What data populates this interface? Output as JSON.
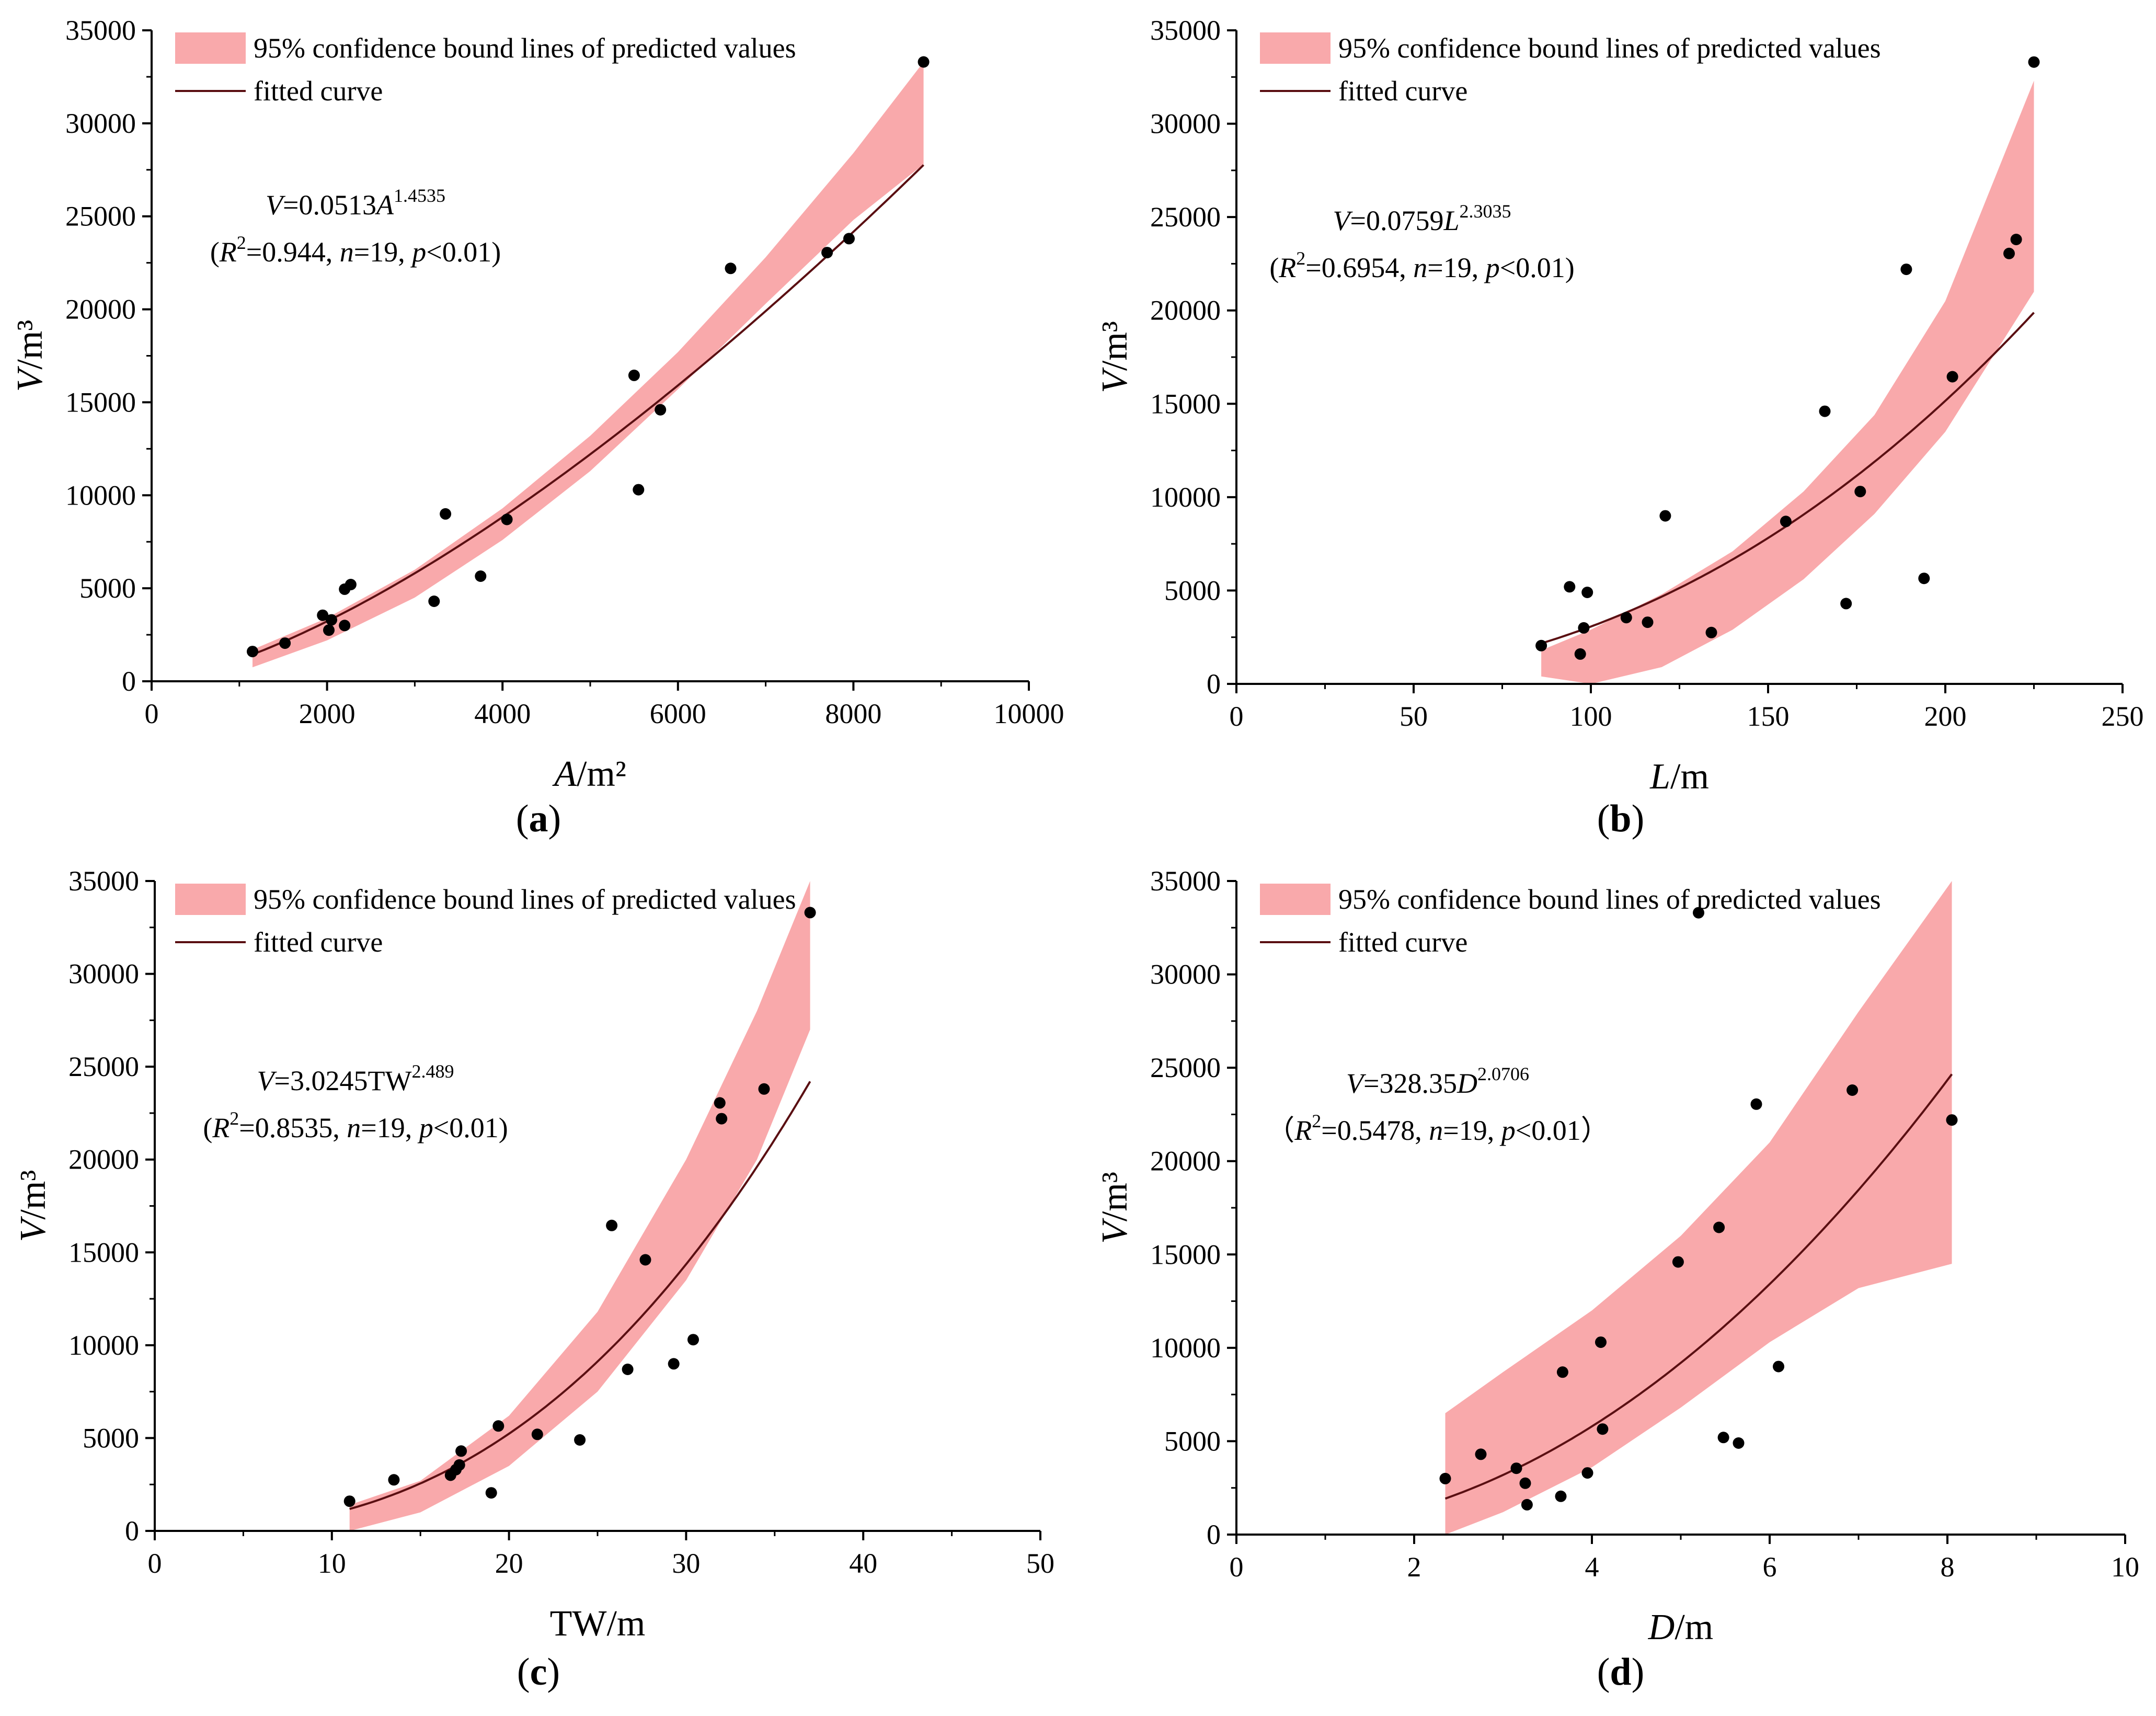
{
  "colors": {
    "band": "#f9a9ab",
    "curve": "#5a0f12",
    "point": "#000000",
    "axis": "#000000"
  },
  "chart_data": [
    {
      "type": "scatter",
      "caption": "(a)",
      "xlabel": {
        "var": "A",
        "unit": "/m²"
      },
      "ylabel": {
        "var": "V",
        "unit": "/m³"
      },
      "xlim": [
        0,
        10000
      ],
      "ylim": [
        0,
        35000
      ],
      "xticks": [
        "0",
        "2000",
        "4000",
        "6000",
        "8000",
        "10000"
      ],
      "yticks": [
        "0",
        "5000",
        "10000",
        "15000",
        "20000",
        "25000",
        "30000",
        "35000"
      ],
      "legend": {
        "band": "95% confidence bound lines of predicted values",
        "curve": "fitted curve"
      },
      "equation": {
        "lhs": "V",
        "coef": "=0.0513",
        "var": "A",
        "exp": "1.4535"
      },
      "stats": {
        "open": "(",
        "r": "R",
        "rexp": "2",
        "rval": "=0.944, ",
        "n": "n",
        "nval": "=19, ",
        "p": "p",
        "pval": "<0.01)"
      },
      "fit": {
        "a": 0.0513,
        "b": 1.4535,
        "xmin": 1150,
        "xmax": 8800
      },
      "band": {
        "lower": [
          [
            1150,
            750
          ],
          [
            2000,
            2200
          ],
          [
            3000,
            4500
          ],
          [
            4000,
            7600
          ],
          [
            5000,
            11300
          ],
          [
            6000,
            15700
          ],
          [
            7000,
            20300
          ],
          [
            8000,
            24800
          ],
          [
            8800,
            27800
          ]
        ],
        "upper": [
          [
            1150,
            1700
          ],
          [
            2000,
            3400
          ],
          [
            3000,
            6000
          ],
          [
            4000,
            9300
          ],
          [
            5000,
            13200
          ],
          [
            6000,
            17700
          ],
          [
            7000,
            22800
          ],
          [
            8000,
            28400
          ],
          [
            8800,
            33300
          ]
        ]
      },
      "points": [
        [
          1150,
          1600
        ],
        [
          1520,
          2050
        ],
        [
          1950,
          3550
        ],
        [
          2020,
          2750
        ],
        [
          2050,
          3300
        ],
        [
          2200,
          3000
        ],
        [
          2200,
          4950
        ],
        [
          2270,
          5200
        ],
        [
          3220,
          4300
        ],
        [
          3350,
          9000
        ],
        [
          3750,
          5650
        ],
        [
          4050,
          8700
        ],
        [
          5500,
          16450
        ],
        [
          5550,
          10300
        ],
        [
          5800,
          14600
        ],
        [
          6600,
          22200
        ],
        [
          7700,
          23050
        ],
        [
          7950,
          23800
        ],
        [
          8800,
          33300
        ]
      ]
    },
    {
      "type": "scatter",
      "caption": "(b)",
      "xlabel": {
        "var": "L",
        "unit": "/m"
      },
      "ylabel": {
        "var": "V",
        "unit": "/m³"
      },
      "xlim": [
        0,
        250
      ],
      "ylim": [
        0,
        35000
      ],
      "xticks": [
        "0",
        "50",
        "100",
        "150",
        "200",
        "250"
      ],
      "yticks": [
        "0",
        "5000",
        "10000",
        "15000",
        "20000",
        "25000",
        "30000",
        "35000"
      ],
      "legend": {
        "band": "95% confidence bound lines of predicted values",
        "curve": "fitted curve"
      },
      "equation": {
        "lhs": "V",
        "coef": "=0.0759",
        "var": "L",
        "exp": "2.3035"
      },
      "stats": {
        "open": "(",
        "r": "R",
        "rexp": "2",
        "rval": "=0.6954, ",
        "n": "n",
        "nval": "=19, ",
        "p": "p",
        "pval": "<0.01)"
      },
      "fit": {
        "a": 0.0759,
        "b": 2.3035,
        "xmin": 86,
        "xmax": 225
      },
      "band": {
        "lower": [
          [
            86,
            400
          ],
          [
            100,
            0
          ],
          [
            120,
            900
          ],
          [
            140,
            2900
          ],
          [
            160,
            5600
          ],
          [
            180,
            9100
          ],
          [
            200,
            13500
          ],
          [
            225,
            21000
          ]
        ],
        "upper": [
          [
            86,
            1800
          ],
          [
            100,
            2900
          ],
          [
            120,
            4800
          ],
          [
            140,
            7100
          ],
          [
            160,
            10300
          ],
          [
            180,
            14400
          ],
          [
            200,
            20500
          ],
          [
            225,
            32300
          ]
        ]
      },
      "points": [
        [
          86,
          2050
        ],
        [
          94,
          5200
        ],
        [
          97,
          1600
        ],
        [
          98,
          3000
        ],
        [
          99,
          4900
        ],
        [
          110,
          3550
        ],
        [
          116,
          3300
        ],
        [
          121,
          9000
        ],
        [
          134,
          2750
        ],
        [
          155,
          8700
        ],
        [
          166,
          14600
        ],
        [
          172,
          4300
        ],
        [
          176,
          10300
        ],
        [
          189,
          22200
        ],
        [
          194,
          5650
        ],
        [
          202,
          16450
        ],
        [
          218,
          23050
        ],
        [
          220,
          23800
        ],
        [
          225,
          33300
        ]
      ]
    },
    {
      "type": "scatter",
      "caption": "(c)",
      "xlabel": {
        "var": "",
        "prefix": "TW",
        "unit": "/m"
      },
      "ylabel": {
        "var": "V",
        "unit": "/m³"
      },
      "xlim": [
        0,
        50
      ],
      "ylim": [
        0,
        35000
      ],
      "xticks": [
        "0",
        "10",
        "20",
        "30",
        "40",
        "50"
      ],
      "yticks": [
        "0",
        "5000",
        "10000",
        "15000",
        "20000",
        "25000",
        "30000",
        "35000"
      ],
      "legend": {
        "band": "95% confidence bound lines of predicted values",
        "curve": "fitted curve"
      },
      "equation": {
        "lhs": "V",
        "coef": "=3.0245",
        "var": "TW",
        "varItalic": false,
        "exp": "2.489"
      },
      "stats": {
        "open": "(",
        "r": "R",
        "rexp": "2",
        "rval": "=0.8535, ",
        "n": "n",
        "nval": "=19, ",
        "p": "p",
        "pval": "<0.01)"
      },
      "fit": {
        "a": 3.0245,
        "b": 2.489,
        "xmin": 11,
        "xmax": 37
      },
      "band": {
        "lower": [
          [
            11,
            0
          ],
          [
            15,
            1000
          ],
          [
            20,
            3500
          ],
          [
            25,
            7500
          ],
          [
            30,
            13500
          ],
          [
            34,
            20000
          ],
          [
            37,
            27000
          ]
        ],
        "upper": [
          [
            11,
            1400
          ],
          [
            15,
            2700
          ],
          [
            20,
            6200
          ],
          [
            25,
            11800
          ],
          [
            30,
            20000
          ],
          [
            34,
            28000
          ],
          [
            37,
            35000
          ]
        ]
      },
      "points": [
        [
          11,
          1600
        ],
        [
          13.5,
          2750
        ],
        [
          16.7,
          3000
        ],
        [
          17,
          3300
        ],
        [
          17.2,
          3550
        ],
        [
          17.3,
          4300
        ],
        [
          19,
          2050
        ],
        [
          19.4,
          5650
        ],
        [
          21.6,
          5200
        ],
        [
          24,
          4900
        ],
        [
          25.8,
          16450
        ],
        [
          26.7,
          8700
        ],
        [
          27.7,
          14600
        ],
        [
          29.3,
          9000
        ],
        [
          30.4,
          10300
        ],
        [
          31.9,
          23050
        ],
        [
          32,
          22200
        ],
        [
          34.4,
          23800
        ],
        [
          37,
          33300
        ]
      ]
    },
    {
      "type": "scatter",
      "caption": "(d)",
      "xlabel": {
        "var": "D",
        "unit": "/m"
      },
      "ylabel": {
        "var": "V",
        "unit": "/m³"
      },
      "xlim": [
        0,
        10
      ],
      "ylim": [
        0,
        35000
      ],
      "xticks": [
        "0",
        "2",
        "4",
        "6",
        "8",
        "10"
      ],
      "yticks": [
        "0",
        "5000",
        "10000",
        "15000",
        "20000",
        "25000",
        "30000",
        "35000"
      ],
      "legend": {
        "band": "95% confidence bound lines of predicted values",
        "curve": "fitted curve"
      },
      "equation": {
        "lhs": "V",
        "coef": "=328.35",
        "var": "D",
        "exp": "2.0706"
      },
      "stats": {
        "open": "（",
        "r": "R",
        "rexp": "2",
        "rval": "=0.5478, ",
        "n": "n",
        "nval": "=19, ",
        "p": "p",
        "pval": "<0.01）"
      },
      "fit": {
        "a": 328.35,
        "b": 2.0706,
        "xmin": 2.35,
        "xmax": 8.05
      },
      "band": {
        "lower": [
          [
            2.35,
            0
          ],
          [
            3,
            1200
          ],
          [
            4,
            3600
          ],
          [
            5,
            6800
          ],
          [
            6,
            10300
          ],
          [
            7,
            13200
          ],
          [
            8.05,
            14500
          ]
        ],
        "upper": [
          [
            2.35,
            6500
          ],
          [
            3,
            8700
          ],
          [
            4,
            12000
          ],
          [
            5,
            16000
          ],
          [
            6,
            21000
          ],
          [
            7,
            28000
          ],
          [
            8.05,
            35000
          ]
        ]
      },
      "points": [
        [
          2.35,
          3000
        ],
        [
          2.75,
          4300
        ],
        [
          3.15,
          3550
        ],
        [
          3.25,
          2750
        ],
        [
          3.27,
          1600
        ],
        [
          3.65,
          2050
        ],
        [
          3.67,
          8700
        ],
        [
          3.95,
          3300
        ],
        [
          4.1,
          10300
        ],
        [
          4.12,
          5650
        ],
        [
          4.97,
          14600
        ],
        [
          5.2,
          33300
        ],
        [
          5.43,
          16450
        ],
        [
          5.48,
          5200
        ],
        [
          5.65,
          4900
        ],
        [
          5.85,
          23050
        ],
        [
          6.1,
          9000
        ],
        [
          6.93,
          23800
        ],
        [
          8.05,
          22200
        ]
      ]
    }
  ]
}
